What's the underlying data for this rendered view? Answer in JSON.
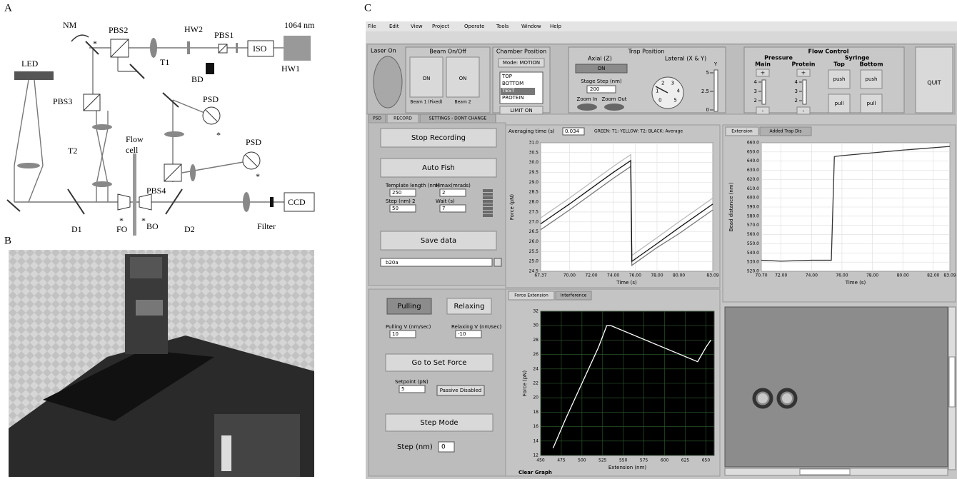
{
  "panels": {
    "a": "A",
    "b": "B",
    "c": "C"
  },
  "diagram": {
    "nm": "NM",
    "pbs2": "PBS2",
    "hw2": "HW2",
    "pbs1": "PBS1",
    "laser": "1064 nm",
    "iso": "ISO",
    "hw1": "HW1",
    "bd": "BD",
    "t1": "T1",
    "led": "LED",
    "pbs3": "PBS3",
    "t2": "T2",
    "psd": "PSD",
    "flow_cell": [
      "Flow",
      "cell"
    ],
    "pbs4": "PBS4",
    "ccd": "CCD",
    "d1": "D1",
    "fo": "FO",
    "bo": "BO",
    "d2": "D2",
    "filter": "Filter",
    "asterisk": "*"
  },
  "ui": {
    "menu": [
      "File",
      "Edit",
      "View",
      "Project",
      "Operate",
      "Tools",
      "Window",
      "Help"
    ],
    "laser_on": "Laser On",
    "beam": {
      "title": "Beam On/Off",
      "on": "ON",
      "beam1": "Beam 1 (Fixed)",
      "beam2": "Beam 2"
    },
    "chamber": {
      "title": "Chamber Position",
      "mode": "Mode: MOTION",
      "items": [
        "TOP",
        "BOTTOM",
        "TEST",
        "PROTEIN"
      ],
      "limit": "LIMIT ON"
    },
    "trap": {
      "title": "Trap Position",
      "axial": "Axial (Z)",
      "on": "ON",
      "stage_step": "Stage Step (nm)",
      "stage_step_value": 200,
      "zoom_in": "Zoom In",
      "zoom_out": "Zoom Out",
      "lateral": "Lateral (X & Y)",
      "y": "Y",
      "y_scale": [
        0,
        2.5,
        5
      ],
      "dial": [
        0,
        1,
        2,
        3,
        4,
        5
      ]
    },
    "flow": {
      "title": "Flow Control",
      "pressure": "Pressure",
      "main": "Main",
      "protein": "Protein",
      "plus": "+",
      "minus": "-",
      "scale": [
        2,
        3,
        4
      ],
      "syringe": "Syringe",
      "top": "Top",
      "bottom": "Bottom",
      "push": "push",
      "pull": "pull"
    },
    "quit": "QUIT",
    "tabs": [
      "PSD",
      "RECORD",
      "SETTINGS - DONT CHANGE"
    ],
    "record": {
      "stop": "Stop Recording",
      "auto_fish": "Auto Fish",
      "template_length": "Template length (nm)",
      "template_length_value": 250,
      "mmax": "Mmax(mrads)",
      "mmax_value": 2,
      "step": "Step (nm) 2",
      "step_value": 50,
      "wait": "Wait (s)",
      "wait_value": 7,
      "save": "Save data",
      "file": "b20a",
      "averaging": "Averaging time (s)",
      "averaging_value": 0.034,
      "legend": "GREEN: T1;  YELLOW: T2;  BLACK: Average"
    },
    "pulling": {
      "pulling": "Pulling",
      "relaxing": "Relaxing",
      "pulling_v": "Pulling V (nm/sec)",
      "pulling_v_value": 10,
      "relaxing_v": "Relaxing V (nm/sec)",
      "relaxing_v_value": -10,
      "go": "Go to Set Force",
      "setpoint": "Setpoint (pN)",
      "setpoint_value": 5,
      "passive": "Passive Disabled",
      "step_mode": "Step Mode",
      "step": "Step (nm)",
      "step_value": 0
    },
    "chart_tabs": {
      "extension": [
        "Extension",
        "Added Trap Dis"
      ],
      "force": [
        "Force Extension",
        "Interference"
      ]
    },
    "clear_graph": "Clear Graph"
  },
  "chart_data": [
    {
      "type": "line",
      "x_label": "Time (s)",
      "y_label": "Force (pN)",
      "background": "#ffffff",
      "grid": true,
      "grid_color": "#dddddd",
      "x": [
        67.37,
        70,
        72,
        74,
        75.6,
        75.7,
        78,
        80,
        83.09
      ],
      "series": [
        {
          "color": "#bbbbbb",
          "values": [
            27.2,
            28.2,
            29.0,
            29.8,
            30.4,
            25.3,
            26.2,
            27.0,
            28.2
          ]
        },
        {
          "color": "#777777",
          "values": [
            26.6,
            27.6,
            28.4,
            29.2,
            29.8,
            24.8,
            25.7,
            26.4,
            27.6
          ]
        },
        {
          "color": "#111111",
          "values": [
            26.9,
            27.9,
            28.7,
            29.5,
            30.1,
            25.0,
            25.9,
            26.7,
            27.9
          ]
        }
      ],
      "xlim": [
        67.37,
        83.09
      ],
      "ylim": [
        24.5,
        31.0
      ],
      "xticks": [
        67.37,
        {
          "value": 70,
          "label": "70.00"
        },
        {
          "value": 72,
          "label": "72.00"
        },
        {
          "value": 74,
          "label": "74.00"
        },
        {
          "value": 76,
          "label": "76.00"
        },
        {
          "value": 78,
          "label": "78.00"
        },
        {
          "value": 80,
          "label": "80.00"
        },
        83.09
      ],
      "yticks": [
        24.5,
        {
          "value": 25,
          "label": "25.0"
        },
        25.5,
        {
          "value": 26,
          "label": "26.0"
        },
        26.5,
        {
          "value": 27,
          "label": "27.0"
        },
        27.5,
        {
          "value": 28,
          "label": "28.0"
        },
        28.5,
        {
          "value": 29,
          "label": "29.0"
        },
        29.5,
        {
          "value": 30,
          "label": "30.0"
        },
        30.5,
        {
          "value": 31,
          "label": "31.0"
        }
      ]
    },
    {
      "type": "line",
      "x_label": "Time (s)",
      "y_label": "Bead distance (nm)",
      "background": "#ffffff",
      "grid": true,
      "grid_color": "#dddddd",
      "x": [
        70.7,
        72,
        74,
        75.3,
        75.5,
        76,
        78,
        80,
        83.09
      ],
      "series": [
        {
          "color": "#333333",
          "values": [
            532,
            531,
            532,
            532,
            645,
            646,
            649,
            652,
            656
          ]
        }
      ],
      "xlim": [
        70.7,
        83.09
      ],
      "ylim": [
        520,
        660
      ],
      "xticks": [
        {
          "value": 70.7,
          "label": "70.70"
        },
        {
          "value": 72,
          "label": "72.00"
        },
        {
          "value": 74,
          "label": "74.00"
        },
        {
          "value": 76,
          "label": "76.00"
        },
        {
          "value": 78,
          "label": "78.00"
        },
        {
          "value": 80,
          "label": "80.00"
        },
        {
          "value": 82,
          "label": "82.00"
        },
        83.09
      ],
      "yticks": [
        {
          "value": 520,
          "label": "520.0"
        },
        {
          "value": 530,
          "label": "530.0"
        },
        {
          "value": 540,
          "label": "540.0"
        },
        {
          "value": 550,
          "label": "550.0"
        },
        {
          "value": 560,
          "label": "560.0"
        },
        {
          "value": 570,
          "label": "570.0"
        },
        {
          "value": 580,
          "label": "580.0"
        },
        {
          "value": 590,
          "label": "590.0"
        },
        {
          "value": 600,
          "label": "600.0"
        },
        {
          "value": 610,
          "label": "610.0"
        },
        {
          "value": 620,
          "label": "620.0"
        },
        {
          "value": 630,
          "label": "630.0"
        },
        {
          "value": 640,
          "label": "640.0"
        },
        {
          "value": 650,
          "label": "650.0"
        },
        {
          "value": 660,
          "label": "660.0"
        }
      ]
    },
    {
      "type": "line",
      "x_label": "Extension (nm)",
      "y_label": "Force (pN)",
      "background": "#000000",
      "grid": true,
      "grid_color": "#2f5f2f",
      "x": [
        465,
        480,
        500,
        520,
        530,
        535,
        640,
        650,
        656
      ],
      "series": [
        {
          "color": "#ffffff",
          "values": [
            13,
            17,
            22,
            27,
            30,
            30,
            25,
            27,
            28
          ]
        }
      ],
      "xlim": [
        450,
        660
      ],
      "ylim": [
        12,
        32
      ],
      "xticks": [
        450,
        475,
        500,
        525,
        550,
        575,
        600,
        625,
        650
      ],
      "yticks": [
        12,
        14,
        16,
        18,
        20,
        22,
        24,
        26,
        28,
        30,
        32
      ]
    }
  ]
}
